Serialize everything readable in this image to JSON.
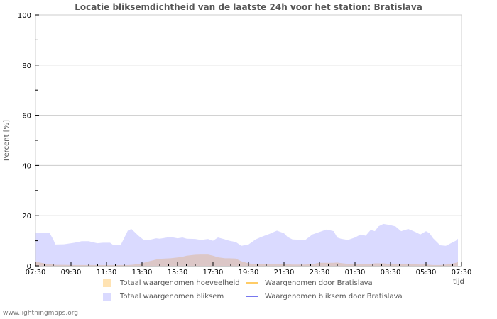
{
  "title": "Locatie bliksemdichtheid van de laatste 24h voor het station: Bratislava",
  "footer": "www.lightningmaps.org",
  "colors": {
    "bliksem_fill": "#dadaff",
    "hoeveelheid_fill": "#ffe3b3",
    "overlap_fill": "#dcc7c7",
    "line_station": "#ffcc66",
    "line_bliksem_station": "#7777ee",
    "grid": "#cccccc"
  },
  "legend": [
    {
      "type": "area",
      "label": "Totaal waargenomen hoeveelheid",
      "color": "#ffe3b3"
    },
    {
      "type": "line",
      "label": "Waargenomen door Bratislava",
      "color": "#ffcc66"
    },
    {
      "type": "area",
      "label": "Totaal waargenomen bliksem",
      "color": "#dadaff"
    },
    {
      "type": "line",
      "label": "Waargenomen bliksem door Bratislava",
      "color": "#7777ee"
    }
  ],
  "chart_data": {
    "type": "area",
    "title": "Locatie bliksemdichtheid van de laatste 24h voor het station: Bratislava",
    "xlabel": "tijd",
    "ylabel": "Percent   [%]",
    "ylim": [
      0,
      100
    ],
    "yticks": [
      0,
      20,
      40,
      60,
      80,
      100
    ],
    "xlim_hours": [
      0,
      24
    ],
    "xticks": [
      "07:30",
      "09:30",
      "11:30",
      "13:30",
      "15:30",
      "17:30",
      "19:30",
      "21:30",
      "23:30",
      "01:30",
      "03:30",
      "05:30",
      "07:30"
    ],
    "grid": true,
    "legend_position": "bottom",
    "x_hours": [
      0,
      0.32,
      0.8,
      1.0,
      1.12,
      1.6,
      2.2,
      2.6,
      3.0,
      3.48,
      3.8,
      4.2,
      4.4,
      4.8,
      5.2,
      5.4,
      5.8,
      6.1,
      6.4,
      6.8,
      7.0,
      7.6,
      8.0,
      8.28,
      8.52,
      9.0,
      9.32,
      9.72,
      10.0,
      10.28,
      10.68,
      10.92,
      11.28,
      11.6,
      12.0,
      12.4,
      12.72,
      13.2,
      13.6,
      14.0,
      14.2,
      14.48,
      15.2,
      15.6,
      16.0,
      16.4,
      16.8,
      17.0,
      17.2,
      17.6,
      18.0,
      18.32,
      18.6,
      18.88,
      19.12,
      19.32,
      19.6,
      19.92,
      20.28,
      20.6,
      21.0,
      21.4,
      21.68,
      22.0,
      22.2,
      22.4,
      22.8,
      23.12,
      23.4,
      23.68,
      23.8
    ],
    "series": [
      {
        "name": "Totaal waargenomen bliksem",
        "values": [
          13.3,
          13.1,
          13.0,
          10.5,
          8.5,
          8.6,
          9.2,
          9.8,
          9.8,
          9.0,
          9.2,
          9.2,
          8.2,
          8.3,
          14.0,
          14.7,
          12.0,
          10.3,
          10.3,
          11.0,
          10.8,
          11.5,
          11.0,
          11.3,
          10.8,
          10.7,
          10.3,
          10.7,
          10.0,
          11.3,
          10.5,
          10.0,
          9.5,
          8.0,
          8.5,
          10.5,
          11.5,
          12.8,
          14.0,
          13.0,
          11.5,
          10.5,
          10.3,
          12.5,
          13.5,
          14.5,
          13.8,
          11.3,
          10.8,
          10.3,
          11.3,
          12.5,
          12.0,
          14.3,
          13.8,
          15.7,
          16.7,
          16.3,
          15.7,
          13.8,
          14.7,
          13.5,
          12.5,
          13.8,
          13.0,
          11.0,
          8.2,
          8.0,
          9.0,
          10.0,
          10.8
        ]
      },
      {
        "name": "Totaal waargenomen hoeveelheid",
        "values": [
          1.7,
          1.2,
          0.6,
          0.5,
          0.4,
          0.4,
          0.3,
          0.3,
          0.3,
          0.3,
          0.3,
          0.3,
          0.3,
          0.3,
          0.3,
          0.4,
          0.7,
          1.2,
          1.8,
          2.5,
          2.8,
          3.0,
          3.3,
          3.6,
          4.0,
          4.4,
          4.5,
          4.5,
          4.0,
          3.4,
          3.0,
          3.0,
          2.9,
          1.8,
          1.0,
          0.6,
          0.6,
          0.7,
          0.8,
          0.8,
          0.6,
          0.5,
          0.5,
          0.7,
          1.2,
          1.2,
          1.2,
          1.3,
          1.1,
          0.8,
          0.6,
          0.6,
          0.7,
          0.8,
          1.0,
          1.0,
          1.0,
          0.8,
          0.6,
          0.6,
          0.6,
          0.6,
          0.5,
          0.6,
          0.4,
          0.3,
          0.3,
          0.5,
          0.8,
          1.2,
          1.5
        ]
      },
      {
        "name": "Waargenomen door Bratislava",
        "values": []
      },
      {
        "name": "Waargenomen bliksem door Bratislava",
        "values": []
      }
    ]
  }
}
